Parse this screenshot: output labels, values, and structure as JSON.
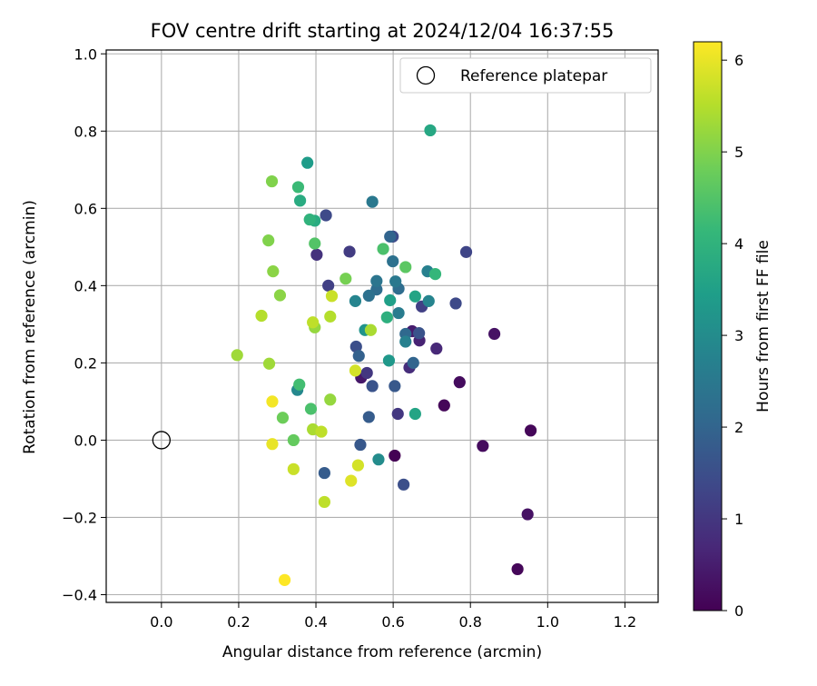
{
  "chart_data": {
    "type": "scatter",
    "title": "FOV centre drift starting at 2024/12/04 16:37:55",
    "xlabel": "Angular distance from reference (arcmin)",
    "ylabel": "Rotation from reference (arcmin)",
    "xlim": [
      -0.143,
      1.286
    ],
    "ylim": [
      -0.42,
      1.01
    ],
    "xticks": [
      0.0,
      0.2,
      0.4,
      0.6,
      0.8,
      1.0,
      1.2
    ],
    "xtick_labels": [
      "0.0",
      "0.2",
      "0.4",
      "0.6",
      "0.8",
      "1.0",
      "1.2"
    ],
    "yticks": [
      -0.4,
      -0.2,
      0.0,
      0.2,
      0.4,
      0.6,
      0.8,
      1.0
    ],
    "ytick_labels": [
      "−0.4",
      "−0.2",
      "0.0",
      "0.2",
      "0.4",
      "0.6",
      "0.8",
      "1.0"
    ],
    "grid": true,
    "legend": {
      "position": "top-right",
      "entries": [
        {
          "label": "Reference platepar",
          "marker": "open-circle"
        }
      ]
    },
    "reference_point": {
      "x": 0.0,
      "y": 0.0
    },
    "colorbar": {
      "label": "Hours from first FF file",
      "colormap": "viridis",
      "range": [
        0,
        6.2
      ],
      "ticks": [
        0,
        1,
        2,
        3,
        4,
        5,
        6
      ],
      "tick_labels": [
        "0",
        "1",
        "2",
        "3",
        "4",
        "5",
        "6"
      ],
      "colors": [
        "#440154",
        "#482878",
        "#3e4989",
        "#31688e",
        "#26828e",
        "#1f9e89",
        "#35b779",
        "#6ece58",
        "#b5de2b",
        "#fde725"
      ]
    },
    "points": [
      {
        "x": 0.604,
        "y": -0.04,
        "c": 0.0
      },
      {
        "x": 0.732,
        "y": 0.09,
        "c": 0.1
      },
      {
        "x": 0.922,
        "y": -0.334,
        "c": 0.1
      },
      {
        "x": 0.956,
        "y": 0.025,
        "c": 0.1
      },
      {
        "x": 0.832,
        "y": -0.015,
        "c": 0.2
      },
      {
        "x": 0.772,
        "y": 0.15,
        "c": 0.2
      },
      {
        "x": 0.862,
        "y": 0.275,
        "c": 0.3
      },
      {
        "x": 0.948,
        "y": -0.192,
        "c": 0.3
      },
      {
        "x": 0.517,
        "y": 0.162,
        "c": 0.4
      },
      {
        "x": 0.649,
        "y": 0.282,
        "c": 0.5
      },
      {
        "x": 0.668,
        "y": 0.258,
        "c": 0.6
      },
      {
        "x": 0.712,
        "y": 0.237,
        "c": 0.7
      },
      {
        "x": 0.642,
        "y": 0.188,
        "c": 0.8
      },
      {
        "x": 0.402,
        "y": 0.48,
        "c": 0.9
      },
      {
        "x": 0.612,
        "y": 0.068,
        "c": 1.0
      },
      {
        "x": 0.532,
        "y": 0.174,
        "c": 1.0
      },
      {
        "x": 0.487,
        "y": 0.488,
        "c": 1.1
      },
      {
        "x": 0.432,
        "y": 0.4,
        "c": 1.2
      },
      {
        "x": 0.674,
        "y": 0.346,
        "c": 1.2
      },
      {
        "x": 0.789,
        "y": 0.487,
        "c": 1.3
      },
      {
        "x": 0.762,
        "y": 0.354,
        "c": 1.4
      },
      {
        "x": 0.426,
        "y": 0.582,
        "c": 1.4
      },
      {
        "x": 0.599,
        "y": 0.527,
        "c": 1.4
      },
      {
        "x": 0.504,
        "y": 0.242,
        "c": 1.5
      },
      {
        "x": 0.627,
        "y": -0.115,
        "c": 1.5
      },
      {
        "x": 0.546,
        "y": 0.14,
        "c": 1.6
      },
      {
        "x": 0.667,
        "y": 0.277,
        "c": 1.6
      },
      {
        "x": 0.515,
        "y": -0.012,
        "c": 1.7
      },
      {
        "x": 0.604,
        "y": 0.14,
        "c": 1.7
      },
      {
        "x": 0.537,
        "y": 0.06,
        "c": 1.8
      },
      {
        "x": 0.422,
        "y": -0.085,
        "c": 1.8
      },
      {
        "x": 0.511,
        "y": 0.218,
        "c": 1.9
      },
      {
        "x": 0.592,
        "y": 0.527,
        "c": 2.0
      },
      {
        "x": 0.652,
        "y": 0.2,
        "c": 2.0
      },
      {
        "x": 0.632,
        "y": 0.275,
        "c": 2.1
      },
      {
        "x": 0.557,
        "y": 0.39,
        "c": 2.2
      },
      {
        "x": 0.614,
        "y": 0.392,
        "c": 2.2
      },
      {
        "x": 0.599,
        "y": 0.463,
        "c": 2.3
      },
      {
        "x": 0.537,
        "y": 0.374,
        "c": 2.3
      },
      {
        "x": 0.557,
        "y": 0.412,
        "c": 2.4
      },
      {
        "x": 0.606,
        "y": 0.411,
        "c": 2.5
      },
      {
        "x": 0.546,
        "y": 0.617,
        "c": 2.5
      },
      {
        "x": 0.614,
        "y": 0.329,
        "c": 2.6
      },
      {
        "x": 0.689,
        "y": 0.437,
        "c": 2.7
      },
      {
        "x": 0.632,
        "y": 0.255,
        "c": 2.7
      },
      {
        "x": 0.692,
        "y": 0.36,
        "c": 2.8
      },
      {
        "x": 0.502,
        "y": 0.36,
        "c": 2.8
      },
      {
        "x": 0.352,
        "y": 0.13,
        "c": 2.9
      },
      {
        "x": 0.562,
        "y": -0.05,
        "c": 3.0
      },
      {
        "x": 0.527,
        "y": 0.285,
        "c": 3.2
      },
      {
        "x": 0.589,
        "y": 0.206,
        "c": 3.3
      },
      {
        "x": 0.378,
        "y": 0.718,
        "c": 3.4
      },
      {
        "x": 0.592,
        "y": 0.362,
        "c": 3.5
      },
      {
        "x": 0.657,
        "y": 0.068,
        "c": 3.6
      },
      {
        "x": 0.657,
        "y": 0.372,
        "c": 3.6
      },
      {
        "x": 0.696,
        "y": 0.802,
        "c": 3.7
      },
      {
        "x": 0.359,
        "y": 0.62,
        "c": 3.8
      },
      {
        "x": 0.397,
        "y": 0.568,
        "c": 3.8
      },
      {
        "x": 0.584,
        "y": 0.318,
        "c": 3.9
      },
      {
        "x": 0.384,
        "y": 0.571,
        "c": 4.0
      },
      {
        "x": 0.709,
        "y": 0.43,
        "c": 4.1
      },
      {
        "x": 0.354,
        "y": 0.655,
        "c": 4.2
      },
      {
        "x": 0.357,
        "y": 0.144,
        "c": 4.3
      },
      {
        "x": 0.574,
        "y": 0.495,
        "c": 4.4
      },
      {
        "x": 0.387,
        "y": 0.081,
        "c": 4.4
      },
      {
        "x": 0.397,
        "y": 0.509,
        "c": 4.5
      },
      {
        "x": 0.632,
        "y": 0.448,
        "c": 4.6
      },
      {
        "x": 0.342,
        "y": 0.0,
        "c": 4.7
      },
      {
        "x": 0.314,
        "y": 0.058,
        "c": 4.8
      },
      {
        "x": 0.477,
        "y": 0.418,
        "c": 4.9
      },
      {
        "x": 0.277,
        "y": 0.517,
        "c": 5.0
      },
      {
        "x": 0.286,
        "y": 0.67,
        "c": 5.0
      },
      {
        "x": 0.289,
        "y": 0.437,
        "c": 5.1
      },
      {
        "x": 0.307,
        "y": 0.375,
        "c": 5.1
      },
      {
        "x": 0.437,
        "y": 0.105,
        "c": 5.2
      },
      {
        "x": 0.397,
        "y": 0.292,
        "c": 5.2
      },
      {
        "x": 0.279,
        "y": 0.198,
        "c": 5.3
      },
      {
        "x": 0.196,
        "y": 0.22,
        "c": 5.3
      },
      {
        "x": 0.392,
        "y": 0.028,
        "c": 5.4
      },
      {
        "x": 0.542,
        "y": 0.285,
        "c": 5.4
      },
      {
        "x": 0.259,
        "y": 0.322,
        "c": 5.5
      },
      {
        "x": 0.437,
        "y": 0.32,
        "c": 5.5
      },
      {
        "x": 0.414,
        "y": 0.022,
        "c": 5.6
      },
      {
        "x": 0.392,
        "y": 0.305,
        "c": 5.6
      },
      {
        "x": 0.422,
        "y": -0.16,
        "c": 5.6
      },
      {
        "x": 0.441,
        "y": 0.373,
        "c": 5.7
      },
      {
        "x": 0.342,
        "y": -0.075,
        "c": 5.7
      },
      {
        "x": 0.502,
        "y": 0.18,
        "c": 5.8
      },
      {
        "x": 0.509,
        "y": -0.065,
        "c": 5.8
      },
      {
        "x": 0.491,
        "y": -0.105,
        "c": 5.9
      },
      {
        "x": 0.287,
        "y": -0.01,
        "c": 6.0
      },
      {
        "x": 0.287,
        "y": 0.1,
        "c": 6.1
      },
      {
        "x": 0.319,
        "y": -0.362,
        "c": 6.2
      }
    ]
  }
}
